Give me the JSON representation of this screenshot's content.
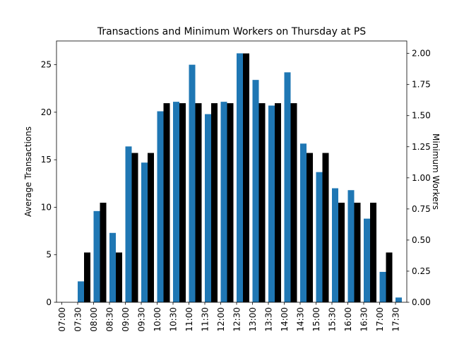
{
  "chart_data": {
    "type": "bar",
    "title": "Transactions and Minimum Workers on Thursday at PS",
    "xlabel": "",
    "ylabel_left": "Average Transactions",
    "ylabel_right": "Minimum Workers",
    "categories": [
      "07:00",
      "07:30",
      "08:00",
      "08:30",
      "09:00",
      "09:30",
      "10:00",
      "10:30",
      "11:00",
      "11:30",
      "12:00",
      "12:30",
      "13:00",
      "13:30",
      "14:00",
      "14:30",
      "15:00",
      "15:30",
      "16:00",
      "16:30",
      "17:00",
      "17:30"
    ],
    "series": [
      {
        "name": "Average Transactions",
        "axis": "left",
        "color": "#1f77b4",
        "values": [
          0,
          2.2,
          9.6,
          7.3,
          16.4,
          14.7,
          20.1,
          21.1,
          25.0,
          19.8,
          21.1,
          26.2,
          23.4,
          20.7,
          24.2,
          16.7,
          13.7,
          12.0,
          11.8,
          8.8,
          3.2,
          0.5
        ]
      },
      {
        "name": "Minimum Workers",
        "axis": "right",
        "color": "#000000",
        "values": [
          0,
          0.4,
          0.8,
          0.4,
          1.2,
          1.2,
          1.6,
          1.6,
          1.6,
          1.6,
          1.6,
          2.0,
          1.6,
          1.6,
          1.6,
          1.2,
          1.2,
          0.8,
          0.8,
          0.8,
          0.4,
          0
        ]
      }
    ],
    "ylim_left": [
      0,
      27.5
    ],
    "ylim_right": [
      0,
      2.1
    ],
    "yticks_left": [
      "0",
      "5",
      "10",
      "15",
      "20",
      "25"
    ],
    "yticks_right": [
      "0.00",
      "0.25",
      "0.50",
      "0.75",
      "1.00",
      "1.25",
      "1.50",
      "1.75",
      "2.00"
    ],
    "grid": false
  }
}
